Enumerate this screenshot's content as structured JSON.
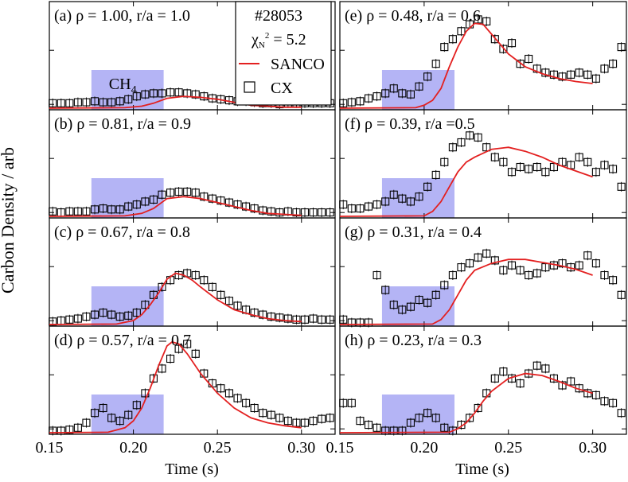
{
  "figure": {
    "ylabel": "Carbon Density / arb",
    "xlabel": "Time (s)",
    "shot": "#28053",
    "chi_label": "χ",
    "chi_sub": "N",
    "chi_sup": "2",
    "chi_value": " = 5.2",
    "puff_label": "CH",
    "puff_sub": "4",
    "legend_sanco": "SANCO",
    "legend_cx": "CX",
    "colors": {
      "sanco": "#e32020",
      "cx": "#000000",
      "puff": "#b4b4f5"
    }
  },
  "chart_data": {
    "type": "line",
    "xlabel": "Time (s)",
    "ylabel": "Carbon Density / arb",
    "x_ticks": [
      "0.15",
      "0.20",
      "0.25",
      "0.30"
    ],
    "xlim": [
      0.15,
      0.32
    ],
    "ylim": [
      0,
      1.0
    ],
    "puff_window": [
      0.175,
      0.218
    ],
    "legend": [
      "SANCO",
      "CX"
    ],
    "panels": [
      {
        "label": "(a) ρ = 1.00, r/a = 1.0",
        "sanco": {
          "x": [
            0.15,
            0.195,
            0.205,
            0.212,
            0.22,
            0.23,
            0.24,
            0.25,
            0.26,
            0.27,
            0.28,
            0.29,
            0.3
          ],
          "y": [
            0,
            0.005,
            0.02,
            0.05,
            0.1,
            0.12,
            0.11,
            0.09,
            0.06,
            0.03,
            0.02,
            0.01,
            0.01
          ]
        },
        "cx": {
          "x": [
            0.152,
            0.157,
            0.162,
            0.167,
            0.172,
            0.177,
            0.182,
            0.187,
            0.192,
            0.197,
            0.202,
            0.207,
            0.212,
            0.217,
            0.222,
            0.227,
            0.232,
            0.237,
            0.242,
            0.247,
            0.252,
            0.257,
            0.262,
            0.267,
            0.272,
            0.277,
            0.282,
            0.287,
            0.292,
            0.297,
            0.302,
            0.307,
            0.312,
            0.317
          ],
          "y": [
            0.05,
            0.05,
            0.05,
            0.06,
            0.06,
            0.07,
            0.06,
            0.06,
            0.07,
            0.09,
            0.12,
            0.14,
            0.15,
            0.15,
            0.16,
            0.16,
            0.15,
            0.14,
            0.12,
            0.1,
            0.09,
            0.08,
            0.07,
            0.07,
            0.06,
            0.05,
            0.05,
            0.04,
            0.05,
            0.05,
            0.05,
            0.05,
            0.05,
            0.05
          ]
        }
      },
      {
        "label": "(b) ρ = 0.81, r/a = 0.9",
        "sanco": {
          "x": [
            0.15,
            0.195,
            0.205,
            0.212,
            0.22,
            0.23,
            0.24,
            0.25,
            0.26,
            0.27,
            0.28,
            0.29,
            0.3
          ],
          "y": [
            0,
            0.005,
            0.03,
            0.08,
            0.18,
            0.2,
            0.18,
            0.14,
            0.1,
            0.06,
            0.03,
            0.02,
            0.01
          ]
        },
        "cx": {
          "x": [
            0.152,
            0.157,
            0.162,
            0.167,
            0.172,
            0.177,
            0.182,
            0.187,
            0.192,
            0.197,
            0.202,
            0.207,
            0.212,
            0.217,
            0.222,
            0.227,
            0.232,
            0.237,
            0.242,
            0.247,
            0.252,
            0.257,
            0.262,
            0.267,
            0.272,
            0.277,
            0.282,
            0.287,
            0.292,
            0.297,
            0.302,
            0.307,
            0.312,
            0.317
          ],
          "y": [
            0.05,
            0.04,
            0.05,
            0.05,
            0.05,
            0.07,
            0.08,
            0.07,
            0.07,
            0.1,
            0.12,
            0.15,
            0.17,
            0.22,
            0.24,
            0.25,
            0.25,
            0.24,
            0.2,
            0.18,
            0.16,
            0.14,
            0.12,
            0.1,
            0.08,
            0.06,
            0.05,
            0.04,
            0.05,
            0.04,
            0.04,
            0.04,
            0.04,
            0.04
          ]
        }
      },
      {
        "label": "(c) ρ = 0.67, r/a = 0.8",
        "sanco": {
          "x": [
            0.15,
            0.19,
            0.2,
            0.205,
            0.21,
            0.215,
            0.22,
            0.225,
            0.23,
            0.235,
            0.24,
            0.25,
            0.26,
            0.27,
            0.28,
            0.29,
            0.3
          ],
          "y": [
            0,
            0.005,
            0.04,
            0.1,
            0.2,
            0.32,
            0.46,
            0.52,
            0.5,
            0.45,
            0.38,
            0.25,
            0.15,
            0.1,
            0.06,
            0.04,
            0.03
          ]
        },
        "cx": {
          "x": [
            0.152,
            0.157,
            0.162,
            0.167,
            0.172,
            0.177,
            0.182,
            0.187,
            0.192,
            0.197,
            0.202,
            0.207,
            0.212,
            0.217,
            0.222,
            0.227,
            0.232,
            0.237,
            0.242,
            0.247,
            0.252,
            0.257,
            0.262,
            0.267,
            0.272,
            0.277,
            0.282,
            0.287,
            0.292,
            0.297,
            0.302,
            0.307,
            0.312,
            0.317
          ],
          "y": [
            0.03,
            0.04,
            0.05,
            0.06,
            0.08,
            0.1,
            0.12,
            0.1,
            0.08,
            0.09,
            0.12,
            0.2,
            0.3,
            0.38,
            0.45,
            0.5,
            0.52,
            0.5,
            0.45,
            0.38,
            0.3,
            0.24,
            0.19,
            0.15,
            0.12,
            0.1,
            0.08,
            0.07,
            0.06,
            0.05,
            0.05,
            0.06,
            0.05,
            0.05
          ]
        }
      },
      {
        "label": "(d) ρ = 0.57, r/a = 0.7",
        "sanco": {
          "x": [
            0.15,
            0.185,
            0.195,
            0.2,
            0.205,
            0.21,
            0.215,
            0.22,
            0.223,
            0.227,
            0.232,
            0.24,
            0.25,
            0.26,
            0.27,
            0.28,
            0.29,
            0.3
          ],
          "y": [
            0,
            0.005,
            0.05,
            0.12,
            0.25,
            0.45,
            0.68,
            0.88,
            0.92,
            0.9,
            0.8,
            0.6,
            0.4,
            0.25,
            0.15,
            0.1,
            0.07,
            0.05
          ]
        },
        "cx": {
          "x": [
            0.152,
            0.157,
            0.162,
            0.167,
            0.172,
            0.177,
            0.182,
            0.187,
            0.192,
            0.197,
            0.202,
            0.207,
            0.212,
            0.217,
            0.222,
            0.227,
            0.232,
            0.237,
            0.242,
            0.247,
            0.252,
            0.257,
            0.262,
            0.267,
            0.272,
            0.277,
            0.282,
            0.287,
            0.292,
            0.297,
            0.302,
            0.307,
            0.312,
            0.317
          ],
          "y": [
            0.02,
            0.02,
            0.03,
            0.05,
            0.1,
            0.2,
            0.25,
            0.15,
            0.12,
            0.18,
            0.28,
            0.4,
            0.55,
            0.65,
            0.75,
            0.85,
            0.9,
            0.8,
            0.6,
            0.5,
            0.45,
            0.4,
            0.35,
            0.3,
            0.25,
            0.2,
            0.18,
            0.15,
            0.12,
            0.1,
            0.1,
            0.12,
            0.14,
            0.15
          ]
        }
      },
      {
        "label": "(e) ρ = 0.48, r/a = 0.6",
        "sanco": {
          "x": [
            0.15,
            0.195,
            0.2,
            0.205,
            0.21,
            0.215,
            0.22,
            0.225,
            0.23,
            0.235,
            0.24,
            0.25,
            0.26,
            0.27,
            0.28,
            0.29,
            0.3
          ],
          "y": [
            0,
            0.005,
            0.03,
            0.08,
            0.2,
            0.42,
            0.62,
            0.78,
            0.86,
            0.85,
            0.75,
            0.55,
            0.42,
            0.35,
            0.3,
            0.27,
            0.25
          ]
        },
        "cx": {
          "x": [
            0.152,
            0.157,
            0.162,
            0.167,
            0.172,
            0.177,
            0.182,
            0.187,
            0.192,
            0.197,
            0.202,
            0.207,
            0.212,
            0.217,
            0.222,
            0.227,
            0.232,
            0.237,
            0.242,
            0.247,
            0.252,
            0.257,
            0.262,
            0.267,
            0.272,
            0.277,
            0.282,
            0.287,
            0.292,
            0.297,
            0.302,
            0.307,
            0.312,
            0.317
          ],
          "y": [
            0.05,
            0.06,
            0.07,
            0.1,
            0.12,
            0.15,
            0.2,
            0.15,
            0.14,
            0.22,
            0.32,
            0.45,
            0.62,
            0.7,
            0.78,
            0.85,
            0.9,
            0.88,
            0.7,
            0.6,
            0.66,
            0.45,
            0.5,
            0.4,
            0.36,
            0.34,
            0.32,
            0.34,
            0.36,
            0.34,
            0.3,
            0.4,
            0.45,
            0.62
          ]
        }
      },
      {
        "label": "(f) ρ = 0.39, r/a =0.5",
        "sanco": {
          "x": [
            0.15,
            0.2,
            0.205,
            0.21,
            0.215,
            0.22,
            0.225,
            0.23,
            0.24,
            0.25,
            0.26,
            0.27,
            0.28,
            0.29,
            0.3
          ],
          "y": [
            0,
            0.005,
            0.05,
            0.15,
            0.3,
            0.45,
            0.55,
            0.6,
            0.68,
            0.7,
            0.66,
            0.6,
            0.52,
            0.46,
            0.4
          ]
        },
        "cx": {
          "x": [
            0.152,
            0.157,
            0.162,
            0.167,
            0.172,
            0.177,
            0.182,
            0.187,
            0.192,
            0.197,
            0.202,
            0.207,
            0.212,
            0.217,
            0.222,
            0.227,
            0.232,
            0.237,
            0.242,
            0.247,
            0.252,
            0.257,
            0.262,
            0.267,
            0.272,
            0.277,
            0.282,
            0.287,
            0.292,
            0.297,
            0.302,
            0.307,
            0.312,
            0.317
          ],
          "y": [
            0.12,
            0.08,
            0.08,
            0.1,
            0.12,
            0.15,
            0.22,
            0.18,
            0.15,
            0.2,
            0.3,
            0.42,
            0.55,
            0.7,
            0.75,
            0.82,
            0.8,
            0.7,
            0.6,
            0.55,
            0.45,
            0.5,
            0.48,
            0.5,
            0.45,
            0.5,
            0.55,
            0.52,
            0.6,
            0.55,
            0.45,
            0.52,
            0.48,
            0.3
          ]
        }
      },
      {
        "label": "(g) ρ = 0.31, r/a = 0.4",
        "sanco": {
          "x": [
            0.15,
            0.205,
            0.21,
            0.215,
            0.22,
            0.225,
            0.23,
            0.24,
            0.25,
            0.26,
            0.27,
            0.28,
            0.29,
            0.3
          ],
          "y": [
            0,
            0.005,
            0.05,
            0.15,
            0.3,
            0.45,
            0.55,
            0.62,
            0.66,
            0.66,
            0.63,
            0.6,
            0.56,
            0.5
          ]
        },
        "cx": {
          "x": [
            0.152,
            0.157,
            0.162,
            0.167,
            0.172,
            0.177,
            0.182,
            0.187,
            0.192,
            0.197,
            0.202,
            0.207,
            0.212,
            0.217,
            0.222,
            0.227,
            0.232,
            0.237,
            0.242,
            0.247,
            0.252,
            0.257,
            0.262,
            0.267,
            0.272,
            0.277,
            0.282,
            0.287,
            0.292,
            0.297,
            0.302,
            0.307,
            0.312,
            0.317
          ],
          "y": [
            0.05,
            0.02,
            0.02,
            0.02,
            0.5,
            0.35,
            0.2,
            0.15,
            0.18,
            0.25,
            0.22,
            0.3,
            0.4,
            0.5,
            0.58,
            0.62,
            0.68,
            0.72,
            0.65,
            0.55,
            0.6,
            0.55,
            0.5,
            0.52,
            0.58,
            0.6,
            0.62,
            0.58,
            0.6,
            0.7,
            0.62,
            0.5,
            0.45,
            0.3
          ]
        }
      },
      {
        "label": "(h) ρ = 0.23, r/a = 0.3",
        "sanco": {
          "x": [
            0.15,
            0.215,
            0.22,
            0.225,
            0.23,
            0.235,
            0.24,
            0.25,
            0.26,
            0.27,
            0.28,
            0.29,
            0.3
          ],
          "y": [
            0,
            0.005,
            0.04,
            0.1,
            0.2,
            0.32,
            0.42,
            0.55,
            0.6,
            0.58,
            0.52,
            0.45,
            0.4
          ]
        },
        "cx": {
          "x": [
            0.152,
            0.157,
            0.162,
            0.167,
            0.172,
            0.177,
            0.182,
            0.187,
            0.192,
            0.197,
            0.202,
            0.207,
            0.212,
            0.217,
            0.222,
            0.227,
            0.232,
            0.237,
            0.242,
            0.247,
            0.252,
            0.257,
            0.262,
            0.267,
            0.272,
            0.277,
            0.282,
            0.287,
            0.292,
            0.297,
            0.302,
            0.307,
            0.312,
            0.317
          ],
          "y": [
            0.3,
            0.3,
            0.12,
            0.08,
            0.05,
            0.02,
            0.02,
            0.02,
            0.1,
            0.15,
            0.2,
            0.15,
            0.05,
            0.02,
            0.08,
            0.15,
            0.25,
            0.4,
            0.55,
            0.62,
            0.55,
            0.5,
            0.6,
            0.68,
            0.65,
            0.55,
            0.48,
            0.52,
            0.45,
            0.4,
            0.38,
            0.32,
            0.3,
            0.2
          ]
        }
      }
    ]
  }
}
